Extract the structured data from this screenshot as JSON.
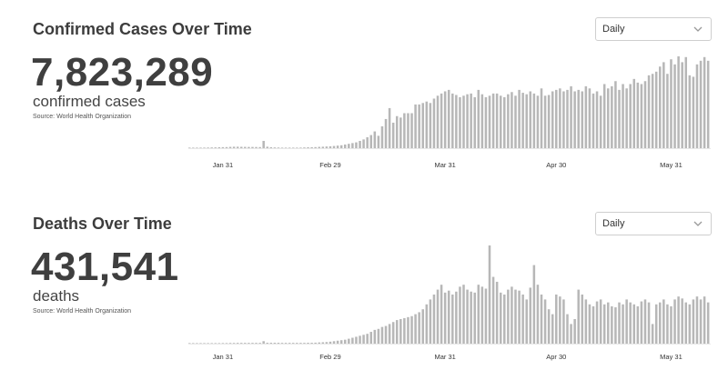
{
  "cases": {
    "title": "Confirmed Cases Over Time",
    "total": "7,823,289",
    "unit": "confirmed cases",
    "source": "Source: World Health Organization",
    "dropdown": {
      "selected": "Daily",
      "icon": "chevron-down-icon"
    }
  },
  "deaths": {
    "title": "Deaths Over Time",
    "total": "431,541",
    "unit": "deaths",
    "source": "Source: World Health Organization",
    "dropdown": {
      "selected": "Daily",
      "icon": "chevron-down-icon"
    }
  },
  "chart_data": [
    {
      "type": "bar",
      "title": "Confirmed Cases Over Time",
      "bar_color": "#b7b7b7",
      "x_tick_labels": [
        "Jan 31",
        "Feb 29",
        "Mar 31",
        "Apr 30",
        "May 31"
      ],
      "x_tick_index": [
        9,
        38,
        69,
        99,
        130
      ],
      "values": [
        0.4,
        0.5,
        0.6,
        0.7,
        0.8,
        0.9,
        1.0,
        1.1,
        1.3,
        1.4,
        1.5,
        1.8,
        2.0,
        2.0,
        1.9,
        1.8,
        1.7,
        1.7,
        1.6,
        1.5,
        10.0,
        2.0,
        1.3,
        1.0,
        0.9,
        0.7,
        0.6,
        0.6,
        0.6,
        0.7,
        0.8,
        1.0,
        1.2,
        1.3,
        1.5,
        1.8,
        2.0,
        2.3,
        2.6,
        3.0,
        3.5,
        4.0,
        5.0,
        6.0,
        7.0,
        8.0,
        10.0,
        12.0,
        15.0,
        18.0,
        23.0,
        17.0,
        30.0,
        40.0,
        55.0,
        35.0,
        44.0,
        42.0,
        48.0,
        48.0,
        48.0,
        60.0,
        60.0,
        62.0,
        64.0,
        62.0,
        68.0,
        72.0,
        75.0,
        78.0,
        80.0,
        75.0,
        73.0,
        70.0,
        72.0,
        74.0,
        75.0,
        70.0,
        80.0,
        74.0,
        70.0,
        72.0,
        75.0,
        75.0,
        72.0,
        70.0,
        74.0,
        77.0,
        72.0,
        80.0,
        76.0,
        74.0,
        78.0,
        75.0,
        72.0,
        82.0,
        72.0,
        73.0,
        78.0,
        80.0,
        82.0,
        78.0,
        80.0,
        85.0,
        78.0,
        80.0,
        78.0,
        85.0,
        82.0,
        75.0,
        78.0,
        72.0,
        88.0,
        82.0,
        85.0,
        92.0,
        80.0,
        88.0,
        82.0,
        88.0,
        95.0,
        90.0,
        88.0,
        92.0,
        100.0,
        102.0,
        105.0,
        112.0,
        118.0,
        102.0,
        122.0,
        115.0,
        126.0,
        118.0,
        125.0,
        100.0,
        98.0,
        115.0,
        120.0,
        125.0,
        120.0
      ]
    },
    {
      "type": "bar",
      "title": "Deaths Over Time",
      "bar_color": "#b7b7b7",
      "x_tick_labels": [
        "Jan 31",
        "Feb 29",
        "Mar 31",
        "Apr 30",
        "May 31"
      ],
      "x_tick_index": [
        9,
        38,
        69,
        99,
        130
      ],
      "values": [
        0.1,
        0.2,
        0.2,
        0.3,
        0.3,
        0.3,
        0.4,
        0.5,
        0.5,
        0.6,
        0.6,
        0.7,
        0.7,
        0.8,
        0.8,
        0.8,
        0.8,
        0.8,
        0.8,
        0.8,
        2.5,
        0.9,
        0.9,
        0.9,
        0.9,
        0.8,
        0.8,
        0.8,
        0.8,
        0.8,
        0.8,
        0.8,
        0.9,
        0.9,
        1.0,
        1.2,
        1.4,
        1.6,
        2.0,
        2.5,
        3.0,
        3.5,
        4.0,
        5.0,
        6.0,
        7.0,
        8.0,
        9.0,
        10.0,
        12.0,
        14.0,
        15.0,
        17.0,
        18.0,
        20.0,
        22.0,
        24.0,
        25.0,
        26.0,
        27.0,
        28.0,
        30.0,
        32.0,
        35.0,
        40.0,
        45.0,
        50.0,
        55.0,
        60.0,
        52.0,
        54.0,
        50.0,
        53.0,
        58.0,
        60.0,
        55.0,
        53.0,
        52.0,
        60.0,
        58.0,
        56.0,
        100.0,
        68.0,
        63.0,
        52.0,
        50.0,
        55.0,
        58.0,
        55.0,
        54.0,
        50.0,
        45.0,
        57.0,
        80.0,
        60.0,
        50.0,
        45.0,
        35.0,
        30.0,
        50.0,
        48.0,
        45.0,
        30.0,
        20.0,
        25.0,
        55.0,
        50.0,
        45.0,
        40.0,
        38.0,
        43.0,
        45.0,
        40.0,
        42.0,
        38.0,
        37.0,
        42.0,
        40.0,
        45.0,
        42.0,
        40.0,
        38.0,
        43.0,
        45.0,
        42.0,
        20.0,
        40.0,
        42.0,
        45.0,
        40.0,
        38.0,
        45.0,
        48.0,
        46.0,
        42.0,
        40.0,
        45.0,
        48.0,
        45.0,
        48.0,
        42.0
      ]
    }
  ]
}
